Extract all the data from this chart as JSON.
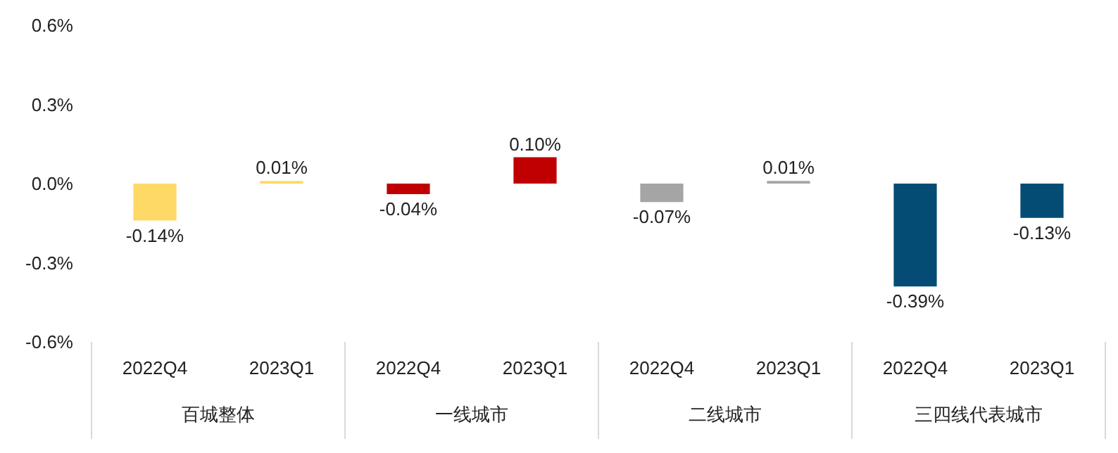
{
  "chart_data": {
    "type": "bar",
    "categories": [
      "2022Q4",
      "2023Q1",
      "2022Q4",
      "2023Q1",
      "2022Q4",
      "2023Q1",
      "2022Q4",
      "2023Q1"
    ],
    "values": [
      -0.14,
      0.01,
      -0.04,
      0.1,
      -0.07,
      0.01,
      -0.39,
      -0.13
    ],
    "value_labels": [
      "-0.14%",
      "0.01%",
      "-0.04%",
      "0.10%",
      "-0.07%",
      "0.01%",
      "-0.39%",
      "-0.13%"
    ],
    "colors": [
      "#ffd966",
      "#ffd966",
      "#c00000",
      "#c00000",
      "#a5a5a5",
      "#a5a5a5",
      "#044c74",
      "#044c74"
    ],
    "ylim": [
      -0.6,
      0.6
    ],
    "yticks": [
      {
        "value": -0.6,
        "label": "-0.6%"
      },
      {
        "value": -0.3,
        "label": "-0.3%"
      },
      {
        "value": 0,
        "label": "0.0%"
      },
      {
        "value": 0.3,
        "label": "0.3%"
      },
      {
        "value": 0.6,
        "label": "0.6%"
      }
    ],
    "annotations": [
      "百城整体",
      "一线城市",
      "二线城市",
      "三四线代表城市"
    ],
    "grid": false
  }
}
